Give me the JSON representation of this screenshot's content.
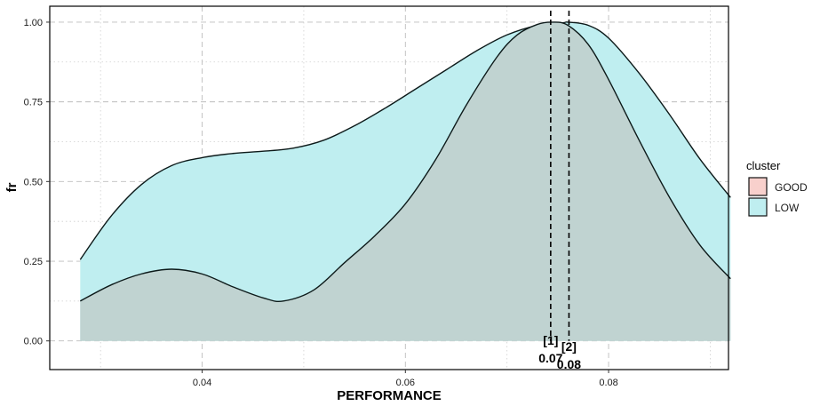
{
  "chart_data": {
    "type": "area",
    "xlabel": "PERFORMANCE",
    "ylabel": "fr",
    "xlim": [
      0.025,
      0.0918
    ],
    "ylim": [
      -0.09,
      1.05
    ],
    "x_ticks": [
      0.04,
      0.06,
      0.08
    ],
    "x_tick_labels": [
      "0.04",
      "0.06",
      "0.08"
    ],
    "y_ticks": [
      0,
      0.25,
      0.5,
      0.75,
      1.0
    ],
    "y_tick_labels": [
      "0.00",
      "0.25",
      "0.50",
      "0.75",
      "1.00"
    ],
    "grid": true,
    "legend": {
      "title": "cluster",
      "position": "right",
      "entries": [
        {
          "label": "GOOD",
          "color": "#f8d0cc"
        },
        {
          "label": "LOW",
          "color": "#bfeef0"
        }
      ]
    },
    "series": [
      {
        "name": "LOW",
        "color": "#bfeef0",
        "x": [
          0.028,
          0.031,
          0.034,
          0.037,
          0.04,
          0.043,
          0.046,
          0.049,
          0.052,
          0.055,
          0.058,
          0.061,
          0.064,
          0.067,
          0.07,
          0.073,
          0.0755,
          0.076,
          0.078,
          0.08,
          0.083,
          0.086,
          0.089,
          0.092
        ],
        "y": [
          0.255,
          0.39,
          0.49,
          0.55,
          0.575,
          0.588,
          0.595,
          0.605,
          0.63,
          0.675,
          0.73,
          0.79,
          0.85,
          0.91,
          0.96,
          0.99,
          0.998,
          1.0,
          0.99,
          0.95,
          0.84,
          0.71,
          0.57,
          0.45
        ]
      },
      {
        "name": "GOOD",
        "color": "#f8d0cc",
        "x": [
          0.028,
          0.031,
          0.034,
          0.037,
          0.04,
          0.043,
          0.046,
          0.048,
          0.051,
          0.054,
          0.057,
          0.06,
          0.063,
          0.066,
          0.069,
          0.071,
          0.073,
          0.0745,
          0.076,
          0.078,
          0.08,
          0.083,
          0.086,
          0.089,
          0.092
        ],
        "y": [
          0.125,
          0.175,
          0.21,
          0.225,
          0.21,
          0.17,
          0.135,
          0.125,
          0.16,
          0.245,
          0.33,
          0.43,
          0.57,
          0.74,
          0.89,
          0.96,
          0.993,
          1.0,
          0.99,
          0.93,
          0.82,
          0.63,
          0.45,
          0.3,
          0.195
        ]
      }
    ],
    "overlap_color": "#c0d3d1",
    "vlines": [
      {
        "x": 0.0743,
        "label": "[1]",
        "value_label": "0.07"
      },
      {
        "x": 0.0761,
        "label": "[2]",
        "value_label": "0.08"
      }
    ]
  }
}
